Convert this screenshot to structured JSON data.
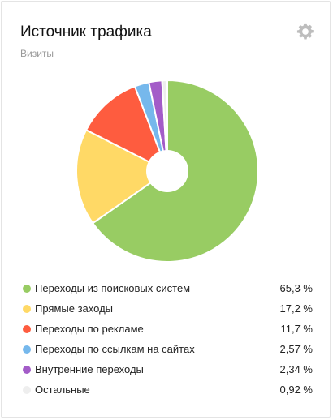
{
  "widget": {
    "title": "Источник трафика",
    "subtitle": "Визиты",
    "settings_icon": "gear-icon"
  },
  "chart_data": {
    "type": "pie",
    "donut": true,
    "categories": [
      "Переходы из поисковых систем",
      "Прямые заходы",
      "Переходы по рекламе",
      "Переходы по ссылкам на сайтах",
      "Внутренние переходы",
      "Остальные"
    ],
    "values": [
      65.3,
      17.2,
      11.7,
      2.57,
      2.34,
      0.92
    ],
    "value_labels": [
      "65,3 %",
      "17,2 %",
      "11,7 %",
      "2,57 %",
      "2,34 %",
      "0,92 %"
    ],
    "colors": [
      "#98cc63",
      "#ffd966",
      "#fe5c3f",
      "#76b8ec",
      "#a35cc8",
      "#eeeeee"
    ],
    "legend_position": "bottom"
  }
}
